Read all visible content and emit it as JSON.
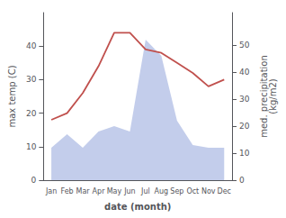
{
  "chart_data": {
    "type": "line",
    "xlabel": "date (month)",
    "ylabel": "max temp (C)",
    "y2label": "med. precipitation\n(kg/m2)",
    "categories": [
      "Jan",
      "Feb",
      "Mar",
      "Apr",
      "May",
      "Jun",
      "Jul",
      "Aug",
      "Sep",
      "Oct",
      "Nov",
      "Dec"
    ],
    "series": [
      {
        "type": "area",
        "axis": "y2",
        "color": "#b8c4e8",
        "values": [
          12,
          17,
          12,
          18,
          20,
          18,
          52,
          46,
          22,
          13,
          12,
          12
        ]
      },
      {
        "type": "line",
        "color": "#c0504d",
        "values": [
          18,
          20,
          26,
          34,
          44,
          44,
          39,
          38,
          35,
          32,
          28,
          30
        ]
      }
    ],
    "ylim": [
      0,
      50
    ],
    "yticks": [
      0,
      10,
      20,
      30,
      40
    ],
    "y2lim": [
      0,
      62
    ],
    "y2ticks": [
      0,
      10,
      20,
      30,
      40,
      50
    ],
    "grid": false
  }
}
